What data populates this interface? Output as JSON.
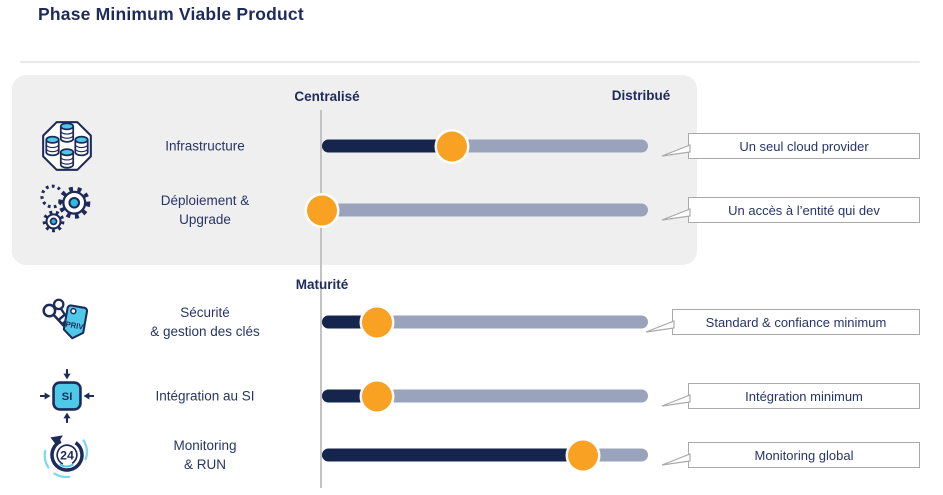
{
  "title": "Phase Minimum Viable Product",
  "scale": {
    "left_label": "Centralisé",
    "right_label": "Distribué",
    "middle_label": "Maturité"
  },
  "colors": {
    "navy": "#1E2A5A",
    "track_filled": "#16254E",
    "track_rest": "#9AA3BC",
    "marker_orange": "#F9A123",
    "panel_gray": "#EFEFEF",
    "callout_border": "#A9A9A9",
    "icon_cyan": "#4EC9E8"
  },
  "rows": [
    {
      "label": "Infrastructure",
      "label2": "",
      "icon": "infrastructure-icon",
      "icon_text": "",
      "value_pct": 40,
      "callout": "Un seul cloud provider"
    },
    {
      "label": "Déploiement &",
      "label2": "Upgrade",
      "icon": "gears-icon",
      "icon_text": "",
      "value_pct": 0,
      "callout": "Un accès à l’entité qui dev"
    },
    {
      "label": "Sécurité",
      "label2": "& gestion des clés",
      "icon": "keys-privilege-icon",
      "icon_text": "PRIV",
      "value_pct": 17,
      "callout": "Standard & confiance minimum"
    },
    {
      "label": "Intégration au SI",
      "label2": "",
      "icon": "si-integration-icon",
      "icon_text": "SI",
      "value_pct": 17,
      "callout": "Intégration minimum"
    },
    {
      "label": "Monitoring",
      "label2": "& RUN",
      "icon": "monitoring-24-icon",
      "icon_text": "24",
      "value_pct": 80,
      "callout": "Monitoring global"
    }
  ]
}
